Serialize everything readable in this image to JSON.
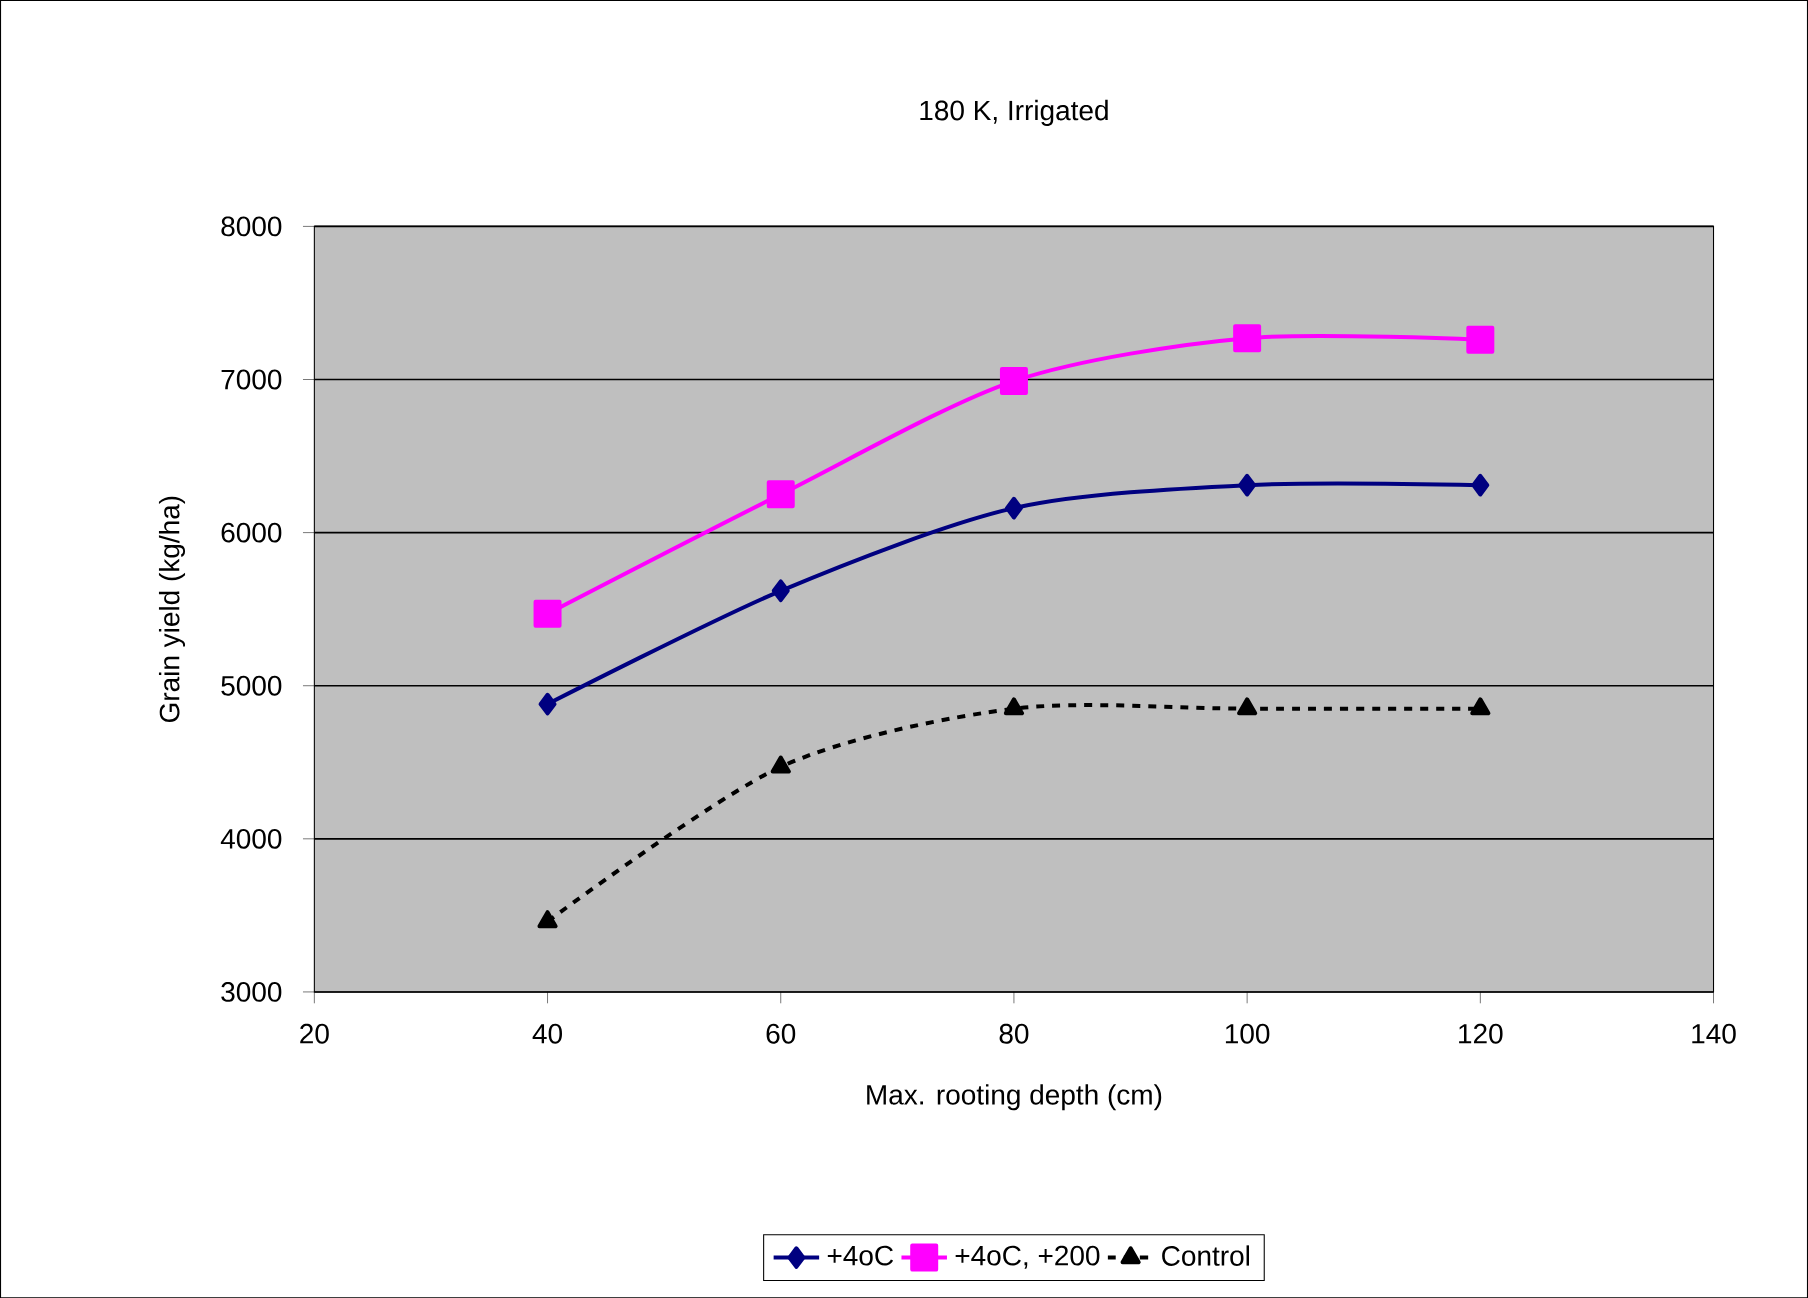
{
  "chart_data": {
    "type": "line",
    "title": "180 K, Irrigated",
    "xlabel": "Max. rooting depth (cm)",
    "ylabel": "Grain yield (kg/ha)",
    "x": [
      40,
      60,
      80,
      100,
      120
    ],
    "series": [
      {
        "name": "+4oC",
        "color": "#000080",
        "marker": "diamond",
        "line_style": "solid",
        "values": [
          4880,
          5620,
          6160,
          6310,
          6310
        ]
      },
      {
        "name": "+4oC, +200",
        "color": "#ff00ff",
        "marker": "square",
        "line_style": "solid",
        "values": [
          5470,
          6250,
          6990,
          7270,
          7260
        ]
      },
      {
        "name": "Control",
        "color": "#000000",
        "marker": "triangle",
        "line_style": "dashed",
        "values": [
          3460,
          4470,
          4850,
          4850,
          4850
        ]
      }
    ],
    "xlim": [
      20,
      140
    ],
    "xticks": [
      20,
      40,
      60,
      80,
      100,
      120,
      140
    ],
    "ylim": [
      3000,
      8000
    ],
    "yticks": [
      3000,
      4000,
      5000,
      6000,
      7000,
      8000
    ],
    "grid": "y",
    "legend": "bottom"
  }
}
